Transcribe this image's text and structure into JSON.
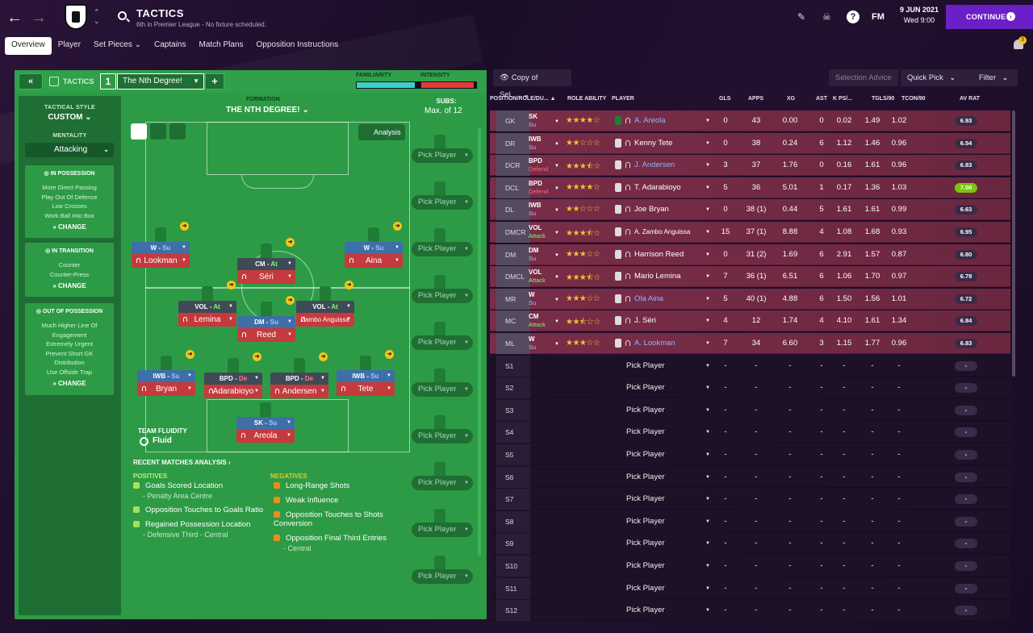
{
  "header": {
    "title": "TACTICS",
    "subtitle": "6th in Premier League - No fixture scheduled.",
    "date": "9 JUN 2021",
    "time": "Wed 9:00",
    "continue": "CONTINUE",
    "logo": "FM",
    "notifications": "3"
  },
  "tabs": [
    "Overview",
    "Player",
    "Set Pieces ⌄",
    "Captains",
    "Match Plans",
    "Opposition Instructions"
  ],
  "tactics_bar": {
    "label": "TACTICS",
    "slot": "1",
    "name": "The Nth Degree!",
    "familiarity_label": "FAMILIARITY",
    "intensity_label": "INTENSITY",
    "familiarity": 0.9,
    "intensity": 0.95
  },
  "style": {
    "heading": "TACTICAL STYLE",
    "value": "CUSTOM",
    "mentality_label": "MENTALITY",
    "mentality": "Attacking",
    "in_possession": {
      "title": "IN POSSESSION",
      "items": [
        "More Direct Passing",
        "Play Out Of Defence",
        "Low Crosses",
        "Work Ball Into Box"
      ],
      "change": "CHANGE"
    },
    "in_transition": {
      "title": "IN TRANSITION",
      "items": [
        "Counter",
        "Counter-Press"
      ],
      "change": "CHANGE"
    },
    "out_of_possession": {
      "title": "OUT OF POSSESSION",
      "items": [
        "Much Higher Line Of",
        "Engagement",
        "Extremely Urgent",
        "Prevent Short GK",
        "Distribution",
        "Use Offside Trap"
      ],
      "change": "CHANGE"
    }
  },
  "formation": {
    "label": "FORMATION",
    "name": "THE NTH DEGREE! ⌄",
    "subs_label": "SUBS:",
    "subs_max": "Max. of 12",
    "analysis": "Analysis",
    "fluidity_label": "TEAM FLUIDITY",
    "fluidity": "Fluid"
  },
  "pitch_players": [
    {
      "role": "W",
      "duty": "Su",
      "name": "Lookman"
    },
    {
      "role": "CM",
      "duty": "At",
      "name": "Séri"
    },
    {
      "role": "W",
      "duty": "Su",
      "name": "Aina"
    },
    {
      "role": "VOL",
      "duty": "At",
      "name": "Lemina"
    },
    {
      "role": "VOL",
      "duty": "At",
      "name": "Zambo Anguissa"
    },
    {
      "role": "DM",
      "duty": "Su",
      "name": "Reed"
    },
    {
      "role": "IWB",
      "duty": "Su",
      "name": "Bryan"
    },
    {
      "role": "BPD",
      "duty": "De",
      "name": "Adarabioyo"
    },
    {
      "role": "BPD",
      "duty": "De",
      "name": "Andersen"
    },
    {
      "role": "IWB",
      "duty": "Su",
      "name": "Tete"
    },
    {
      "role": "SK",
      "duty": "Su",
      "name": "Areola"
    }
  ],
  "subs": [
    "Pick Player",
    "Pick Player",
    "Pick Player",
    "Pick Player",
    "Pick Player",
    "Pick Player",
    "Pick Player",
    "Pick Player",
    "Pick Player",
    "Pick Player"
  ],
  "analysis": {
    "title": "RECENT MATCHES ANALYSIS ›",
    "positives_label": "POSITIVES",
    "negatives_label": "NEGATIVES",
    "positives": [
      {
        "t": "Goals Scored Location",
        "s": "- Penalty Area Centre"
      },
      {
        "t": "Opposition Touches to Goals Ratio",
        "s": ""
      },
      {
        "t": "Regained Possession Location",
        "s": "- Defensive Third - Central"
      }
    ],
    "negatives": [
      {
        "t": "Long-Range Shots",
        "s": ""
      },
      {
        "t": "Weak Influence",
        "s": ""
      },
      {
        "t": "Opposition Touches to Shots Conversion",
        "s": ""
      },
      {
        "t": "Opposition Final Third Entries",
        "s": "- Central"
      }
    ]
  },
  "toolbar": {
    "view": "Copy of Sel...",
    "advice": "Selection Advice",
    "quick": "Quick Pick",
    "filter": "Filter"
  },
  "columns": [
    "POSITION/ROLE/DU... ▲",
    "ROLE ABILITY",
    "PLAYER",
    "GLS",
    "APPS",
    "XG",
    "AST",
    "K PS/...",
    "TGLS/90",
    "TCON/90",
    "AV RAT"
  ],
  "squad": [
    {
      "pos": "GK",
      "role": "SK",
      "duty": "Su",
      "stars": 4,
      "half": false,
      "name": "A. Areola",
      "link": true,
      "gls": "0",
      "apps": "43",
      "xg": "0.00",
      "ast": "0",
      "kps": "0.02",
      "tgls": "1.49",
      "tcon": "1.02",
      "av": "6.93"
    },
    {
      "pos": "DR",
      "role": "IWB",
      "duty": "Su",
      "stars": 2,
      "half": false,
      "name": "Kenny Tete",
      "link": false,
      "gls": "0",
      "apps": "38",
      "xg": "0.24",
      "ast": "6",
      "kps": "1.12",
      "tgls": "1.46",
      "tcon": "0.96",
      "av": "6.54"
    },
    {
      "pos": "DCR",
      "role": "BPD",
      "duty": "Defend",
      "stars": 3,
      "half": true,
      "name": "J. Andersen",
      "link": true,
      "gls": "3",
      "apps": "37",
      "xg": "1.76",
      "ast": "0",
      "kps": "0.16",
      "tgls": "1.61",
      "tcon": "0.96",
      "av": "6.83"
    },
    {
      "pos": "DCL",
      "role": "BPD",
      "duty": "Defend",
      "stars": 4,
      "half": false,
      "name": "T. Adarabioyo",
      "link": false,
      "gls": "5",
      "apps": "36",
      "xg": "5.01",
      "ast": "1",
      "kps": "0.17",
      "tgls": "1.36",
      "tcon": "1.03",
      "av": "7.00"
    },
    {
      "pos": "DL",
      "role": "IWB",
      "duty": "Su",
      "stars": 2,
      "half": false,
      "name": "Joe Bryan",
      "link": false,
      "gls": "0",
      "apps": "38 (1)",
      "xg": "0.44",
      "ast": "5",
      "kps": "1.61",
      "tgls": "1.61",
      "tcon": "0.99",
      "av": "6.63"
    },
    {
      "pos": "DMCR",
      "role": "VOL",
      "duty": "Attack",
      "stars": 3,
      "half": true,
      "name": "A. Zambo Anguissa",
      "link": false,
      "gls": "15",
      "apps": "37 (1)",
      "xg": "8.88",
      "ast": "4",
      "kps": "1.08",
      "tgls": "1.68",
      "tcon": "0.93",
      "av": "6.95"
    },
    {
      "pos": "DM",
      "role": "DM",
      "duty": "Su",
      "stars": 3,
      "half": false,
      "name": "Harrison Reed",
      "link": false,
      "gls": "0",
      "apps": "31 (2)",
      "xg": "1.69",
      "ast": "6",
      "kps": "2.91",
      "tgls": "1.57",
      "tcon": "0.87",
      "av": "6.80"
    },
    {
      "pos": "DMCL",
      "role": "VOL",
      "duty": "Attack",
      "stars": 3,
      "half": true,
      "name": "Mario Lemina",
      "link": false,
      "gls": "7",
      "apps": "36 (1)",
      "xg": "6.51",
      "ast": "6",
      "kps": "1.06",
      "tgls": "1.70",
      "tcon": "0.97",
      "av": "6.79"
    },
    {
      "pos": "MR",
      "role": "W",
      "duty": "Su",
      "stars": 3,
      "half": false,
      "name": "Ola Aina",
      "link": true,
      "gls": "5",
      "apps": "40 (1)",
      "xg": "4.88",
      "ast": "6",
      "kps": "1.50",
      "tgls": "1.56",
      "tcon": "1.01",
      "av": "6.72"
    },
    {
      "pos": "MC",
      "role": "CM",
      "duty": "Attack",
      "stars": 2,
      "half": true,
      "name": "J. Séri",
      "link": false,
      "gls": "4",
      "apps": "12 (13)",
      "xg": "1.74",
      "ast": "4",
      "kps": "4.10",
      "tgls": "1.61",
      "tcon": "1.34",
      "av": "6.84"
    },
    {
      "pos": "ML",
      "role": "W",
      "duty": "Su",
      "stars": 3,
      "half": false,
      "name": "A. Lookman",
      "link": true,
      "gls": "7",
      "apps": "34",
      "xg": "6.60",
      "ast": "3",
      "kps": "1.15",
      "tgls": "1.77",
      "tcon": "0.96",
      "av": "6.83"
    }
  ],
  "sub_rows": [
    "S1",
    "S2",
    "S3",
    "S4",
    "S5",
    "S6",
    "S7",
    "S8",
    "S9",
    "S10",
    "S11",
    "S12"
  ],
  "pick_label": "Pick Player",
  "dash": "-"
}
